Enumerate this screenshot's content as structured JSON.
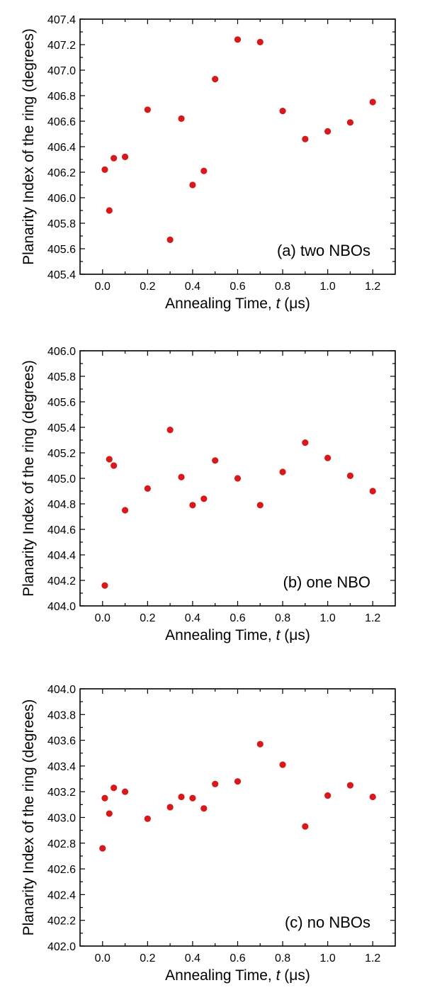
{
  "point_color": "#d7191c",
  "chart_data": [
    {
      "type": "scatter",
      "panel_label": "(a) two NBOs",
      "xlabel_prefix": "Annealing Time, ",
      "xlabel_var": "t",
      "xlabel_unit": "(μs)",
      "ylabel": "Planarity Index of the ring (degrees)",
      "xlim": [
        -0.1,
        1.3
      ],
      "ylim": [
        405.4,
        407.4
      ],
      "xticks": [
        "0.0",
        "0.2",
        "0.4",
        "0.6",
        "0.8",
        "1.0",
        "1.2"
      ],
      "yticks": [
        "405.4",
        "405.6",
        "405.8",
        "406.0",
        "406.2",
        "406.4",
        "406.6",
        "406.8",
        "407.0",
        "407.2",
        "407.4"
      ],
      "points": [
        [
          0.01,
          406.22
        ],
        [
          0.03,
          405.9
        ],
        [
          0.05,
          406.31
        ],
        [
          0.1,
          406.32
        ],
        [
          0.2,
          406.69
        ],
        [
          0.3,
          405.67
        ],
        [
          0.35,
          406.62
        ],
        [
          0.4,
          406.1
        ],
        [
          0.45,
          406.21
        ],
        [
          0.5,
          406.93
        ],
        [
          0.6,
          407.24
        ],
        [
          0.7,
          407.22
        ],
        [
          0.8,
          406.68
        ],
        [
          0.9,
          406.46
        ],
        [
          1.0,
          406.52
        ],
        [
          1.1,
          406.59
        ],
        [
          1.2,
          406.75
        ]
      ]
    },
    {
      "type": "scatter",
      "panel_label": "(b) one NBO",
      "xlabel_prefix": "Annealing Time, ",
      "xlabel_var": "t",
      "xlabel_unit": "(μs)",
      "ylabel": "Planarity Index of the ring (degrees)",
      "xlim": [
        -0.1,
        1.3
      ],
      "ylim": [
        404.0,
        406.0
      ],
      "xticks": [
        "0.0",
        "0.2",
        "0.4",
        "0.6",
        "0.8",
        "1.0",
        "1.2"
      ],
      "yticks": [
        "404.0",
        "404.2",
        "404.4",
        "404.6",
        "404.8",
        "405.0",
        "405.2",
        "405.4",
        "405.6",
        "405.8",
        "406.0"
      ],
      "points": [
        [
          0.01,
          404.16
        ],
        [
          0.03,
          405.15
        ],
        [
          0.05,
          405.1
        ],
        [
          0.1,
          404.75
        ],
        [
          0.2,
          404.92
        ],
        [
          0.3,
          405.38
        ],
        [
          0.35,
          405.01
        ],
        [
          0.4,
          404.79
        ],
        [
          0.45,
          404.84
        ],
        [
          0.5,
          405.14
        ],
        [
          0.6,
          405.0
        ],
        [
          0.7,
          404.79
        ],
        [
          0.8,
          405.05
        ],
        [
          0.9,
          405.28
        ],
        [
          1.0,
          405.16
        ],
        [
          1.1,
          405.02
        ],
        [
          1.2,
          404.9
        ]
      ]
    },
    {
      "type": "scatter",
      "panel_label": "(c) no NBOs",
      "xlabel_prefix": "Annealing Time, ",
      "xlabel_var": "t",
      "xlabel_unit": "(μs)",
      "ylabel": "Planarity Index of the ring (degrees)",
      "xlim": [
        -0.1,
        1.3
      ],
      "ylim": [
        402.0,
        404.0
      ],
      "xticks": [
        "0.0",
        "0.2",
        "0.4",
        "0.6",
        "0.8",
        "1.0",
        "1.2"
      ],
      "yticks": [
        "402.0",
        "402.2",
        "402.4",
        "402.6",
        "402.8",
        "403.0",
        "403.2",
        "403.4",
        "403.6",
        "403.8",
        "404.0"
      ],
      "points": [
        [
          0.0,
          402.76
        ],
        [
          0.01,
          403.15
        ],
        [
          0.03,
          403.03
        ],
        [
          0.05,
          403.23
        ],
        [
          0.1,
          403.2
        ],
        [
          0.2,
          402.99
        ],
        [
          0.3,
          403.08
        ],
        [
          0.35,
          403.16
        ],
        [
          0.4,
          403.15
        ],
        [
          0.45,
          403.07
        ],
        [
          0.5,
          403.26
        ],
        [
          0.6,
          403.28
        ],
        [
          0.7,
          403.57
        ],
        [
          0.8,
          403.41
        ],
        [
          0.9,
          402.93
        ],
        [
          1.0,
          403.17
        ],
        [
          1.1,
          403.25
        ],
        [
          1.2,
          403.16
        ]
      ]
    }
  ]
}
